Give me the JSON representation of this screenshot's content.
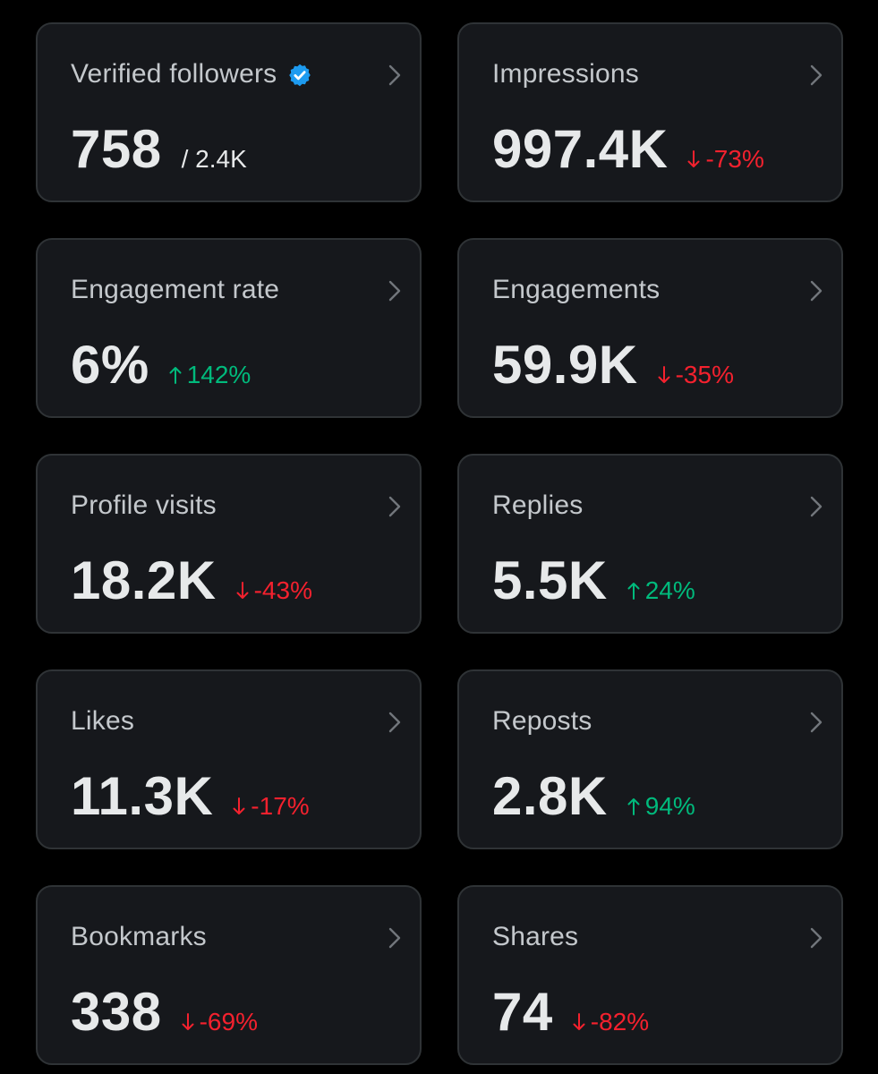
{
  "colors": {
    "background": "#000000",
    "card": "#16181c",
    "card_border": "#2f3336",
    "up": "#00ba7c",
    "down": "#f4212e",
    "verified": "#1d9bf0"
  },
  "cards": [
    {
      "title": "Verified followers",
      "value": "758",
      "total": "/ 2.4K",
      "verified_icon": "verified-badge-icon"
    },
    {
      "title": "Impressions",
      "value": "997.4K",
      "change": "-73%",
      "direction": "down"
    },
    {
      "title": "Engagement rate",
      "value": "6%",
      "change": "142%",
      "direction": "up"
    },
    {
      "title": "Engagements",
      "value": "59.9K",
      "change": "-35%",
      "direction": "down"
    },
    {
      "title": "Profile visits",
      "value": "18.2K",
      "change": "-43%",
      "direction": "down"
    },
    {
      "title": "Replies",
      "value": "5.5K",
      "change": "24%",
      "direction": "up"
    },
    {
      "title": "Likes",
      "value": "11.3K",
      "change": "-17%",
      "direction": "down"
    },
    {
      "title": "Reposts",
      "value": "2.8K",
      "change": "94%",
      "direction": "up"
    },
    {
      "title": "Bookmarks",
      "value": "338",
      "change": "-69%",
      "direction": "down"
    },
    {
      "title": "Shares",
      "value": "74",
      "change": "-82%",
      "direction": "down"
    }
  ]
}
